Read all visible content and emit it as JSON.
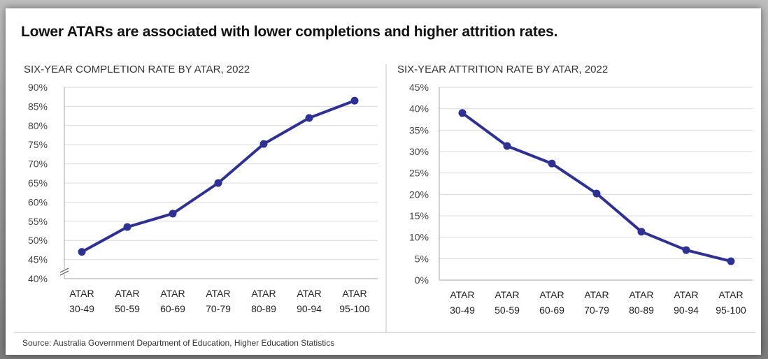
{
  "headline": "Lower ATARs are associated with lower completions and higher attrition rates.",
  "source": "Source: Australia Government Department of Education, Higher Education Statistics",
  "colors": {
    "line": "#2e3192",
    "grid": "#d9d9d9",
    "axis": "#a6a6a6"
  },
  "chart_data": [
    {
      "type": "line",
      "title": "SIX-YEAR COMPLETION RATE BY ATAR, 2022",
      "categories": [
        [
          "ATAR",
          "30-49"
        ],
        [
          "ATAR",
          "50-59"
        ],
        [
          "ATAR",
          "60-69"
        ],
        [
          "ATAR",
          "70-79"
        ],
        [
          "ATAR",
          "80-89"
        ],
        [
          "ATAR",
          "90-94"
        ],
        [
          "ATAR",
          "95-100"
        ]
      ],
      "series": [
        {
          "values": [
            47,
            53.5,
            57,
            65,
            75.2,
            82,
            86.5
          ]
        }
      ],
      "ylim": [
        40,
        90
      ],
      "yticks": [
        "40%",
        "45%",
        "50%",
        "55%",
        "60%",
        "65%",
        "70%",
        "75%",
        "80%",
        "85%",
        "90%"
      ],
      "y_axis_break": true,
      "grid": true,
      "legend": "none"
    },
    {
      "type": "line",
      "title": "SIX-YEAR ATTRITION RATE BY ATAR, 2022",
      "categories": [
        [
          "ATAR",
          "30-49"
        ],
        [
          "ATAR",
          "50-59"
        ],
        [
          "ATAR",
          "60-69"
        ],
        [
          "ATAR",
          "70-79"
        ],
        [
          "ATAR",
          "80-89"
        ],
        [
          "ATAR",
          "90-94"
        ],
        [
          "ATAR",
          "95-100"
        ]
      ],
      "series": [
        {
          "values": [
            39,
            31.3,
            27.2,
            20.2,
            11.3,
            7,
            4.4
          ]
        }
      ],
      "ylim": [
        0,
        45
      ],
      "yticks": [
        "0%",
        "5%",
        "10%",
        "15%",
        "20%",
        "25%",
        "30%",
        "35%",
        "40%",
        "45%"
      ],
      "y_axis_break": false,
      "grid": true,
      "legend": "none"
    }
  ]
}
